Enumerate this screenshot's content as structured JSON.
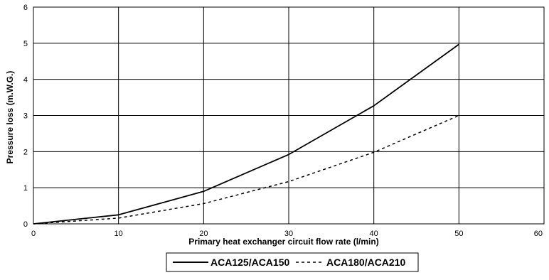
{
  "chart_data": {
    "type": "line",
    "title": "",
    "xlabel": "Primary heat exchanger circuit flow rate (l/min)",
    "ylabel": "Pressure loss (m.W.G.)",
    "xlim": [
      0,
      60
    ],
    "ylim": [
      0,
      6
    ],
    "xticks": [
      "0",
      "10",
      "20",
      "30",
      "40",
      "50",
      "60"
    ],
    "yticks": [
      "0",
      "1",
      "2",
      "3",
      "4",
      "5",
      "6"
    ],
    "grid": true,
    "legend_position": "bottom",
    "series": [
      {
        "name": "ACA125/ACA150",
        "style": "solid",
        "color": "#000000",
        "points": [
          [
            0,
            0
          ],
          [
            10,
            0.25
          ],
          [
            20,
            0.9
          ],
          [
            30,
            1.92
          ],
          [
            40,
            3.27
          ],
          [
            50,
            4.97
          ]
        ]
      },
      {
        "name": "ACA180/ACA210",
        "style": "dashed",
        "color": "#000000",
        "points": [
          [
            0,
            0
          ],
          [
            10,
            0.16
          ],
          [
            20,
            0.56
          ],
          [
            30,
            1.17
          ],
          [
            40,
            1.98
          ],
          [
            50,
            3.0
          ]
        ]
      }
    ]
  }
}
